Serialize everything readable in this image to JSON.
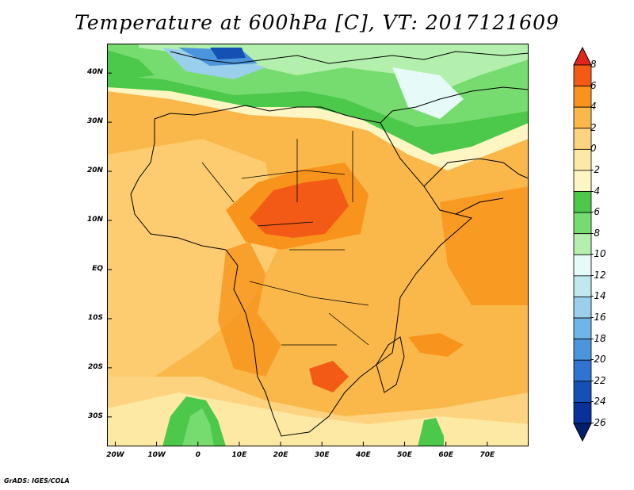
{
  "title": "Temperature at 600hPa [C], VT: 2017121609",
  "credit": "GrADS: IGES/COLA",
  "map": {
    "y_ticks": [
      {
        "label": "40N",
        "lat": 40
      },
      {
        "label": "30N",
        "lat": 30
      },
      {
        "label": "20N",
        "lat": 20
      },
      {
        "label": "10N",
        "lat": 10
      },
      {
        "label": "EQ",
        "lat": 0
      },
      {
        "label": "10S",
        "lat": -10
      },
      {
        "label": "20S",
        "lat": -20
      },
      {
        "label": "30S",
        "lat": -30
      }
    ],
    "x_ticks": [
      {
        "label": "20W",
        "lon": -20
      },
      {
        "label": "10W",
        "lon": -10
      },
      {
        "label": "0",
        "lon": 0
      },
      {
        "label": "10E",
        "lon": 10
      },
      {
        "label": "20E",
        "lon": 20
      },
      {
        "label": "30E",
        "lon": 30
      },
      {
        "label": "40E",
        "lon": 40
      },
      {
        "label": "50E",
        "lon": 50
      },
      {
        "label": "60E",
        "lon": 60
      },
      {
        "label": "70E",
        "lon": 70
      }
    ],
    "lon_range": [
      -22,
      80
    ],
    "lat_range": [
      -36,
      46
    ]
  },
  "colorbar": {
    "labels": [
      "8",
      "6",
      "4",
      "2",
      "0",
      "-2",
      "-4",
      "-6",
      "-8",
      "-10",
      "-12",
      "-14",
      "-16",
      "-18",
      "-20",
      "-22",
      "-24",
      "-26"
    ],
    "colors": [
      "#e3241b",
      "#f25a15",
      "#f8941c",
      "#fab84a",
      "#fdd37f",
      "#fde8a4",
      "#fdf6c3",
      "#4cc94a",
      "#77dc70",
      "#b3f0ad",
      "#e6fbf8",
      "#bfe9ef",
      "#9ad0ec",
      "#6fb6e8",
      "#4b95dd",
      "#2f74d0",
      "#1451b4",
      "#07329a",
      "#031e6e"
    ]
  }
}
